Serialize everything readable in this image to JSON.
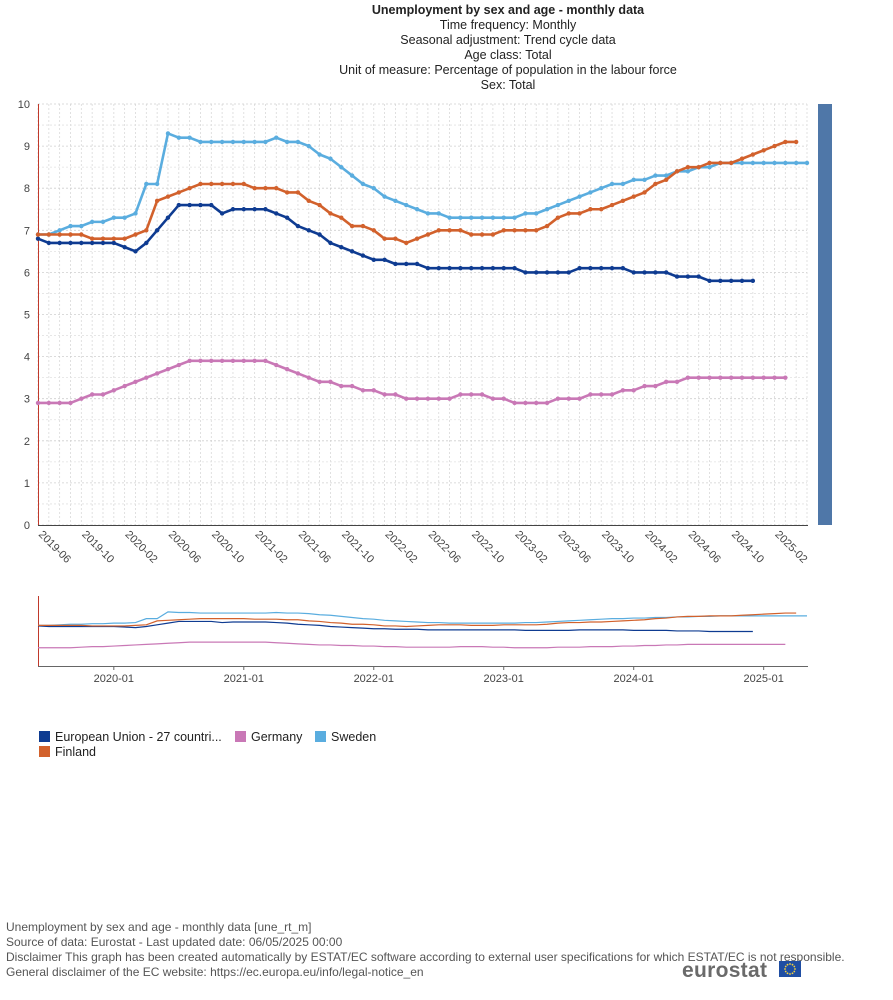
{
  "header": {
    "title": "Unemployment by sex and age - monthly data",
    "lines": [
      "Time frequency:  Monthly",
      "Seasonal adjustment:  Trend cycle data",
      "Age class:  Total",
      "Unit of measure:  Percentage of population in the labour force",
      "Sex:  Total"
    ]
  },
  "chart_data": {
    "type": "line",
    "title": "Unemployment by sex and age - monthly data",
    "xlabel": "",
    "ylabel": "",
    "ylim": [
      0,
      10
    ],
    "yticks": [
      "0",
      "1",
      "2",
      "3",
      "4",
      "5",
      "6",
      "7",
      "8",
      "9",
      "10"
    ],
    "start_month": "2019-06",
    "x_tick_labels": [
      "2019-06",
      "2019-10",
      "2020-02",
      "2020-06",
      "2020-10",
      "2021-02",
      "2021-06",
      "2021-10",
      "2022-02",
      "2022-06",
      "2022-10",
      "2023-02",
      "2023-06",
      "2023-10",
      "2024-02",
      "2024-06",
      "2024-10",
      "2025-02"
    ],
    "navigator_tick_labels": [
      "2020-01",
      "2021-01",
      "2022-01",
      "2023-01",
      "2024-01",
      "2025-01"
    ],
    "series": [
      {
        "name": "European Union - 27 countri...",
        "color": "#0e3b91",
        "values": [
          6.8,
          6.7,
          6.7,
          6.7,
          6.7,
          6.7,
          6.7,
          6.7,
          6.6,
          6.5,
          6.7,
          7.0,
          7.3,
          7.6,
          7.6,
          7.6,
          7.6,
          7.4,
          7.5,
          7.5,
          7.5,
          7.5,
          7.4,
          7.3,
          7.1,
          7.0,
          6.9,
          6.7,
          6.6,
          6.5,
          6.4,
          6.3,
          6.3,
          6.2,
          6.2,
          6.2,
          6.1,
          6.1,
          6.1,
          6.1,
          6.1,
          6.1,
          6.1,
          6.1,
          6.1,
          6.0,
          6.0,
          6.0,
          6.0,
          6.0,
          6.1,
          6.1,
          6.1,
          6.1,
          6.1,
          6.0,
          6.0,
          6.0,
          6.0,
          5.9,
          5.9,
          5.9,
          5.8,
          5.8,
          5.8,
          5.8,
          5.8
        ]
      },
      {
        "name": "Germany",
        "color": "#c978b6",
        "values": [
          2.9,
          2.9,
          2.9,
          2.9,
          3.0,
          3.1,
          3.1,
          3.2,
          3.3,
          3.4,
          3.5,
          3.6,
          3.7,
          3.8,
          3.9,
          3.9,
          3.9,
          3.9,
          3.9,
          3.9,
          3.9,
          3.9,
          3.8,
          3.7,
          3.6,
          3.5,
          3.4,
          3.4,
          3.3,
          3.3,
          3.2,
          3.2,
          3.1,
          3.1,
          3.0,
          3.0,
          3.0,
          3.0,
          3.0,
          3.1,
          3.1,
          3.1,
          3.0,
          3.0,
          2.9,
          2.9,
          2.9,
          2.9,
          3.0,
          3.0,
          3.0,
          3.1,
          3.1,
          3.1,
          3.2,
          3.2,
          3.3,
          3.3,
          3.4,
          3.4,
          3.5,
          3.5,
          3.5,
          3.5,
          3.5,
          3.5,
          3.5,
          3.5,
          3.5,
          3.5
        ]
      },
      {
        "name": "Sweden",
        "color": "#5aaddf",
        "values": [
          6.9,
          6.9,
          7.0,
          7.1,
          7.1,
          7.2,
          7.2,
          7.3,
          7.3,
          7.4,
          8.1,
          8.1,
          9.3,
          9.2,
          9.2,
          9.1,
          9.1,
          9.1,
          9.1,
          9.1,
          9.1,
          9.1,
          9.2,
          9.1,
          9.1,
          9.0,
          8.8,
          8.7,
          8.5,
          8.3,
          8.1,
          8.0,
          7.8,
          7.7,
          7.6,
          7.5,
          7.4,
          7.4,
          7.3,
          7.3,
          7.3,
          7.3,
          7.3,
          7.3,
          7.3,
          7.4,
          7.4,
          7.5,
          7.6,
          7.7,
          7.8,
          7.9,
          8.0,
          8.1,
          8.1,
          8.2,
          8.2,
          8.3,
          8.3,
          8.4,
          8.4,
          8.5,
          8.5,
          8.6,
          8.6,
          8.6,
          8.6,
          8.6,
          8.6,
          8.6,
          8.6,
          8.6
        ]
      },
      {
        "name": "Finland",
        "color": "#d2612c",
        "values": [
          6.9,
          6.9,
          6.9,
          6.9,
          6.9,
          6.8,
          6.8,
          6.8,
          6.8,
          6.9,
          7.0,
          7.7,
          7.8,
          7.9,
          8.0,
          8.1,
          8.1,
          8.1,
          8.1,
          8.1,
          8.0,
          8.0,
          8.0,
          7.9,
          7.9,
          7.7,
          7.6,
          7.4,
          7.3,
          7.1,
          7.1,
          7.0,
          6.8,
          6.8,
          6.7,
          6.8,
          6.9,
          7.0,
          7.0,
          7.0,
          6.9,
          6.9,
          6.9,
          7.0,
          7.0,
          7.0,
          7.0,
          7.1,
          7.3,
          7.4,
          7.4,
          7.5,
          7.5,
          7.6,
          7.7,
          7.8,
          7.9,
          8.1,
          8.2,
          8.4,
          8.5,
          8.5,
          8.6,
          8.6,
          8.6,
          8.7,
          8.8,
          8.9,
          9.0,
          9.1,
          9.1
        ]
      }
    ]
  },
  "footer": {
    "lines": [
      "Unemployment by sex and age - monthly data [une_rt_m]",
      "Source of data: Eurostat - Last updated date: 06/05/2025 00:00",
      "Disclaimer This graph has been created automatically by ESTAT/EC software according to external user specifications for which ESTAT/EC is not responsible.",
      "General disclaimer of the EC website: https://ec.europa.eu/info/legal-notice_en"
    ]
  },
  "brand": {
    "logo_text": "eurostat"
  }
}
